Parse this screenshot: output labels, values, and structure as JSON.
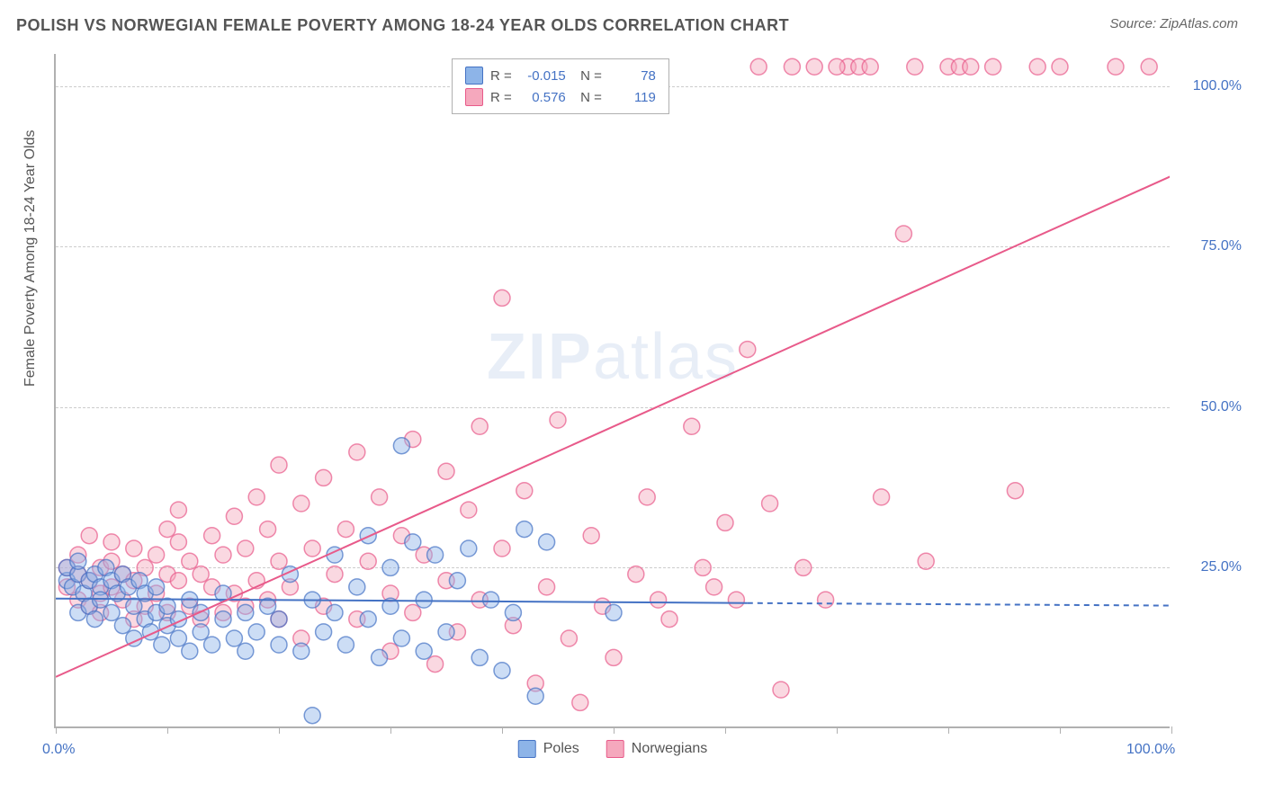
{
  "title": "POLISH VS NORWEGIAN FEMALE POVERTY AMONG 18-24 YEAR OLDS CORRELATION CHART",
  "source": "Source: ZipAtlas.com",
  "ylabel": "Female Poverty Among 18-24 Year Olds",
  "watermark_a": "ZIP",
  "watermark_b": "atlas",
  "chart": {
    "type": "scatter",
    "background_color": "#ffffff",
    "grid_color": "#cccccc",
    "xlim": [
      0,
      100
    ],
    "ylim": [
      0,
      105
    ],
    "xticks": [
      0,
      10,
      20,
      30,
      40,
      50,
      60,
      70,
      80,
      90,
      100
    ],
    "yticks": [
      25,
      50,
      75,
      100
    ],
    "ytick_labels": [
      "25.0%",
      "50.0%",
      "75.0%",
      "100.0%"
    ],
    "x_axis_labels": [
      {
        "pos": 0,
        "text": "0.0%"
      },
      {
        "pos": 100,
        "text": "100.0%"
      }
    ],
    "marker_radius": 9,
    "marker_opacity": 0.45,
    "marker_stroke_width": 1.5,
    "line_width": 2,
    "series": [
      {
        "name": "Poles",
        "color_fill": "#8db4e8",
        "color_stroke": "#4472c4",
        "R": "-0.015",
        "N": "78",
        "trend": {
          "x1": 0,
          "y1": 20.2,
          "x2": 62,
          "y2": 19.5,
          "dash_x2": 100,
          "dash_y2": 19.1
        },
        "points": [
          [
            1,
            23
          ],
          [
            1,
            25
          ],
          [
            1.5,
            22
          ],
          [
            2,
            24
          ],
          [
            2,
            18
          ],
          [
            2,
            26
          ],
          [
            2.5,
            21
          ],
          [
            3,
            23
          ],
          [
            3,
            19
          ],
          [
            3.5,
            24
          ],
          [
            3.5,
            17
          ],
          [
            4,
            22
          ],
          [
            4,
            20
          ],
          [
            4.5,
            25
          ],
          [
            5,
            23
          ],
          [
            5,
            18
          ],
          [
            5.5,
            21
          ],
          [
            6,
            24
          ],
          [
            6,
            16
          ],
          [
            6.5,
            22
          ],
          [
            7,
            19
          ],
          [
            7,
            14
          ],
          [
            7.5,
            23
          ],
          [
            8,
            17
          ],
          [
            8,
            21
          ],
          [
            8.5,
            15
          ],
          [
            9,
            18
          ],
          [
            9,
            22
          ],
          [
            9.5,
            13
          ],
          [
            10,
            16
          ],
          [
            10,
            19
          ],
          [
            11,
            14
          ],
          [
            11,
            17
          ],
          [
            12,
            20
          ],
          [
            12,
            12
          ],
          [
            13,
            15
          ],
          [
            13,
            18
          ],
          [
            14,
            13
          ],
          [
            15,
            17
          ],
          [
            15,
            21
          ],
          [
            16,
            14
          ],
          [
            17,
            12
          ],
          [
            17,
            18
          ],
          [
            18,
            15
          ],
          [
            19,
            19
          ],
          [
            20,
            13
          ],
          [
            20,
            17
          ],
          [
            21,
            24
          ],
          [
            22,
            12
          ],
          [
            23,
            20
          ],
          [
            23,
            2
          ],
          [
            24,
            15
          ],
          [
            25,
            18
          ],
          [
            25,
            27
          ],
          [
            26,
            13
          ],
          [
            27,
            22
          ],
          [
            28,
            17
          ],
          [
            28,
            30
          ],
          [
            29,
            11
          ],
          [
            30,
            19
          ],
          [
            30,
            25
          ],
          [
            31,
            14
          ],
          [
            31,
            44
          ],
          [
            32,
            29
          ],
          [
            33,
            12
          ],
          [
            33,
            20
          ],
          [
            34,
            27
          ],
          [
            35,
            15
          ],
          [
            36,
            23
          ],
          [
            37,
            28
          ],
          [
            38,
            11
          ],
          [
            39,
            20
          ],
          [
            40,
            9
          ],
          [
            41,
            18
          ],
          [
            42,
            31
          ],
          [
            43,
            5
          ],
          [
            44,
            29
          ],
          [
            50,
            18
          ]
        ]
      },
      {
        "name": "Norwegians",
        "color_fill": "#f5a8bd",
        "color_stroke": "#e85a8a",
        "R": "0.576",
        "N": "119",
        "trend": {
          "x1": 0,
          "y1": 8,
          "x2": 100,
          "y2": 86
        },
        "points": [
          [
            1,
            22
          ],
          [
            1,
            25
          ],
          [
            2,
            20
          ],
          [
            2,
            24
          ],
          [
            2,
            27
          ],
          [
            3,
            19
          ],
          [
            3,
            23
          ],
          [
            3,
            30
          ],
          [
            4,
            21
          ],
          [
            4,
            25
          ],
          [
            4,
            18
          ],
          [
            5,
            22
          ],
          [
            5,
            26
          ],
          [
            5,
            29
          ],
          [
            6,
            20
          ],
          [
            6,
            24
          ],
          [
            7,
            17
          ],
          [
            7,
            23
          ],
          [
            7,
            28
          ],
          [
            8,
            19
          ],
          [
            8,
            25
          ],
          [
            9,
            21
          ],
          [
            9,
            27
          ],
          [
            10,
            18
          ],
          [
            10,
            24
          ],
          [
            10,
            31
          ],
          [
            11,
            23
          ],
          [
            11,
            29
          ],
          [
            11,
            34
          ],
          [
            12,
            19
          ],
          [
            12,
            26
          ],
          [
            13,
            17
          ],
          [
            13,
            24
          ],
          [
            14,
            22
          ],
          [
            14,
            30
          ],
          [
            15,
            18
          ],
          [
            15,
            27
          ],
          [
            16,
            21
          ],
          [
            16,
            33
          ],
          [
            17,
            19
          ],
          [
            17,
            28
          ],
          [
            18,
            23
          ],
          [
            18,
            36
          ],
          [
            19,
            20
          ],
          [
            19,
            31
          ],
          [
            20,
            17
          ],
          [
            20,
            26
          ],
          [
            20,
            41
          ],
          [
            21,
            22
          ],
          [
            22,
            35
          ],
          [
            22,
            14
          ],
          [
            23,
            28
          ],
          [
            24,
            19
          ],
          [
            24,
            39
          ],
          [
            25,
            24
          ],
          [
            26,
            31
          ],
          [
            27,
            17
          ],
          [
            27,
            43
          ],
          [
            28,
            26
          ],
          [
            29,
            36
          ],
          [
            30,
            21
          ],
          [
            30,
            12
          ],
          [
            31,
            30
          ],
          [
            32,
            18
          ],
          [
            32,
            45
          ],
          [
            33,
            27
          ],
          [
            34,
            10
          ],
          [
            35,
            40
          ],
          [
            35,
            23
          ],
          [
            36,
            15
          ],
          [
            37,
            34
          ],
          [
            38,
            47
          ],
          [
            38,
            20
          ],
          [
            40,
            28
          ],
          [
            40,
            67
          ],
          [
            41,
            16
          ],
          [
            42,
            37
          ],
          [
            43,
            7
          ],
          [
            44,
            22
          ],
          [
            45,
            48
          ],
          [
            46,
            14
          ],
          [
            47,
            4
          ],
          [
            48,
            30
          ],
          [
            49,
            19
          ],
          [
            50,
            11
          ],
          [
            52,
            24
          ],
          [
            53,
            36
          ],
          [
            54,
            20
          ],
          [
            55,
            17
          ],
          [
            57,
            47
          ],
          [
            58,
            25
          ],
          [
            59,
            22
          ],
          [
            60,
            32
          ],
          [
            61,
            20
          ],
          [
            62,
            59
          ],
          [
            63,
            103
          ],
          [
            64,
            35
          ],
          [
            65,
            6
          ],
          [
            67,
            25
          ],
          [
            68,
            103
          ],
          [
            69,
            20
          ],
          [
            71,
            103
          ],
          [
            72,
            103
          ],
          [
            73,
            103
          ],
          [
            74,
            36
          ],
          [
            76,
            77
          ],
          [
            77,
            103
          ],
          [
            78,
            26
          ],
          [
            80,
            103
          ],
          [
            81,
            103
          ],
          [
            82,
            103
          ],
          [
            84,
            103
          ],
          [
            86,
            37
          ],
          [
            88,
            103
          ],
          [
            90,
            103
          ],
          [
            95,
            103
          ],
          [
            98,
            103
          ],
          [
            70,
            103
          ],
          [
            66,
            103
          ]
        ]
      }
    ]
  },
  "colors": {
    "title": "#555555",
    "axis_text": "#4472c4",
    "blue_fill": "#8db4e8",
    "blue_stroke": "#4472c4",
    "pink_fill": "#f5a8bd",
    "pink_stroke": "#e85a8a"
  }
}
